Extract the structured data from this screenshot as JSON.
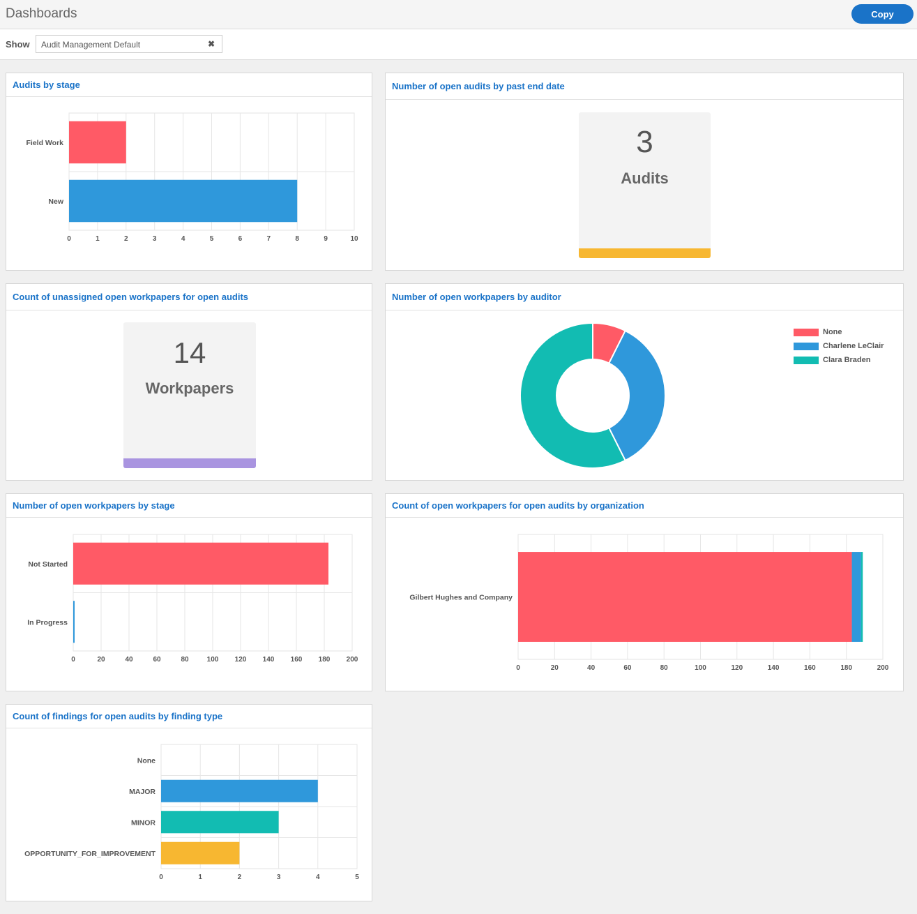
{
  "header": {
    "title": "Dashboards",
    "copy_label": "Copy"
  },
  "filter": {
    "show_label": "Show",
    "selected": "Audit Management Default"
  },
  "colors": {
    "red": "#ff5a66",
    "blue": "#2f98db",
    "teal": "#12bcb2",
    "yellow": "#f7b731",
    "purple": "#a994e0",
    "brand": "#1a73c8"
  },
  "panels": {
    "audits_by_stage": {
      "title": "Audits by stage",
      "chart_data": {
        "type": "bar",
        "orientation": "horizontal",
        "categories": [
          "Field Work",
          "New"
        ],
        "values": [
          2,
          8
        ],
        "bar_colors": [
          "#ff5a66",
          "#2f98db"
        ],
        "xlim": [
          0,
          10
        ],
        "xticks": [
          0,
          1,
          2,
          3,
          4,
          5,
          6,
          7,
          8,
          9,
          10
        ],
        "grid": true
      }
    },
    "open_audits_past_end": {
      "title": "Number of open audits by past end date",
      "value": "3",
      "label": "Audits",
      "bar_color": "#f7b731"
    },
    "unassigned_workpapers": {
      "title": "Count of unassigned open workpapers for open audits",
      "value": "14",
      "label": "Workpapers",
      "bar_color": "#a994e0"
    },
    "workpapers_by_auditor": {
      "title": "Number of open workpapers by auditor",
      "chart_data": {
        "type": "pie",
        "style": "donut",
        "labels": [
          "None",
          "Charlene LeClair",
          "Clara Braden"
        ],
        "values": [
          8,
          38,
          62
        ],
        "colors": [
          "#ff5a66",
          "#2f98db",
          "#12bcb2"
        ],
        "legend": "right"
      }
    },
    "workpapers_by_stage": {
      "title": "Number of open workpapers by stage",
      "chart_data": {
        "type": "bar",
        "orientation": "horizontal",
        "categories": [
          "Not Started",
          "In Progress"
        ],
        "values": [
          183,
          1
        ],
        "bar_colors": [
          "#ff5a66",
          "#2f98db"
        ],
        "xlim": [
          0,
          200
        ],
        "xticks": [
          0,
          20,
          40,
          60,
          80,
          100,
          120,
          140,
          160,
          180,
          200
        ],
        "grid": true
      }
    },
    "workpapers_by_org": {
      "title": "Count of open workpapers for open audits by organization",
      "chart_data": {
        "type": "bar",
        "orientation": "horizontal",
        "stacked": true,
        "categories": [
          "Gilbert Hughes and Company"
        ],
        "series": [
          {
            "values": [
              183
            ],
            "color": "#ff5a66"
          },
          {
            "values": [
              5
            ],
            "color": "#2f98db"
          },
          {
            "values": [
              1
            ],
            "color": "#12bcb2"
          }
        ],
        "xlim": [
          0,
          200
        ],
        "xticks": [
          0,
          20,
          40,
          60,
          80,
          100,
          120,
          140,
          160,
          180,
          200
        ],
        "grid": true
      }
    },
    "findings_by_type": {
      "title": "Count of findings for open audits by finding type",
      "chart_data": {
        "type": "bar",
        "orientation": "horizontal",
        "categories": [
          "None",
          "MAJOR",
          "MINOR",
          "OPPORTUNITY_FOR_IMPROVEMENT"
        ],
        "values": [
          0,
          4,
          3,
          2
        ],
        "bar_colors": [
          "#ff5a66",
          "#2f98db",
          "#12bcb2",
          "#f7b731"
        ],
        "xlim": [
          0,
          5
        ],
        "xticks": [
          0,
          1,
          2,
          3,
          4,
          5
        ],
        "grid": true
      }
    }
  }
}
